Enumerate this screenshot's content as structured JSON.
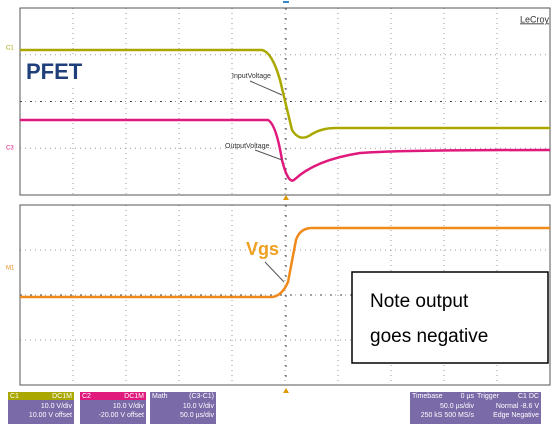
{
  "brand": "LeCroy",
  "title": "PFET",
  "annotations": {
    "input": "InputVoltage",
    "output": "OutputVoltage",
    "vgs": "Vgs",
    "note": [
      "Note output",
      "goes negative"
    ]
  },
  "channel_markers": [
    "C1",
    "C3",
    "M1"
  ],
  "status": [
    {
      "name": "C1",
      "tag": "DC1M",
      "lines": [
        "10.0 V/div",
        "10.00 V offset"
      ]
    },
    {
      "name": "C2",
      "tag": "DC1M",
      "lines": [
        "10.0 V/div",
        "-20.00 V offset"
      ]
    },
    {
      "name": "Math",
      "tag": "(C3-C1)",
      "lines": [
        "10.0 V/div",
        "50.0 µs/div"
      ]
    },
    {
      "name": "Timebase",
      "tag": "0 µs",
      "lines": [
        "50.0 µs/div",
        "250 kS  500 MS/s"
      ]
    },
    {
      "name": "Trigger",
      "tag": "C1 DC",
      "lines": [
        "Normal  -8.6 V",
        "Edge  Negative"
      ]
    }
  ]
}
